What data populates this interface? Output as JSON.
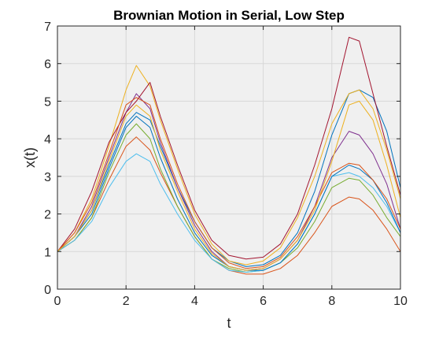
{
  "chart_data": {
    "type": "line",
    "title": "Brownian Motion in Serial, Low Step",
    "xlabel": "t",
    "ylabel": "x(t)",
    "xlim": [
      0,
      10
    ],
    "ylim": [
      0,
      7
    ],
    "xticks": [
      "0",
      "2",
      "4",
      "6",
      "8",
      "10"
    ],
    "yticks": [
      "0",
      "1",
      "2",
      "3",
      "4",
      "5",
      "6",
      "7"
    ],
    "grid": true,
    "legend": "none",
    "background_color": "#f0f0f0",
    "x": [
      0,
      0.5,
      1,
      1.5,
      2,
      2.3,
      2.7,
      3,
      3.5,
      4,
      4.5,
      5,
      5.5,
      6,
      6.5,
      7,
      7.5,
      8,
      8.5,
      8.8,
      9.2,
      9.6,
      10
    ],
    "series": [
      {
        "color": "#0072BD",
        "values": [
          1.0,
          1.4,
          2.1,
          3.3,
          4.4,
          4.7,
          4.5,
          3.8,
          2.7,
          1.8,
          1.1,
          0.75,
          0.6,
          0.65,
          0.9,
          1.5,
          2.6,
          4.1,
          5.2,
          5.3,
          5.1,
          4.2,
          2.7
        ]
      },
      {
        "color": "#D95319",
        "values": [
          1.0,
          1.3,
          1.9,
          2.9,
          3.8,
          4.05,
          3.7,
          3.1,
          2.2,
          1.4,
          0.8,
          0.5,
          0.4,
          0.4,
          0.55,
          0.9,
          1.5,
          2.2,
          2.45,
          2.4,
          2.1,
          1.6,
          1.0
        ]
      },
      {
        "color": "#EDB120",
        "values": [
          1.0,
          1.5,
          2.4,
          3.8,
          5.3,
          5.95,
          5.4,
          4.5,
          3.2,
          2.0,
          1.2,
          0.75,
          0.65,
          0.75,
          1.1,
          1.9,
          3.0,
          4.4,
          5.2,
          5.3,
          4.8,
          3.7,
          2.4
        ]
      },
      {
        "color": "#7E2F8E",
        "values": [
          1.0,
          1.4,
          2.2,
          3.5,
          4.7,
          5.2,
          4.8,
          3.9,
          2.7,
          1.7,
          1.0,
          0.6,
          0.5,
          0.55,
          0.8,
          1.3,
          2.2,
          3.5,
          4.2,
          4.1,
          3.6,
          2.8,
          1.6
        ]
      },
      {
        "color": "#77AC30",
        "values": [
          1.0,
          1.3,
          1.9,
          3.1,
          4.1,
          4.4,
          4.0,
          3.2,
          2.2,
          1.4,
          0.8,
          0.55,
          0.45,
          0.5,
          0.7,
          1.1,
          1.8,
          2.7,
          2.95,
          2.9,
          2.5,
          1.9,
          1.4
        ]
      },
      {
        "color": "#4DBEEE",
        "values": [
          1.0,
          1.3,
          1.8,
          2.7,
          3.4,
          3.6,
          3.4,
          2.8,
          2.0,
          1.3,
          0.8,
          0.5,
          0.45,
          0.5,
          0.7,
          1.2,
          2.0,
          3.0,
          3.1,
          3.0,
          2.7,
          2.2,
          1.5
        ]
      },
      {
        "color": "#A2142F",
        "values": [
          1.0,
          1.6,
          2.6,
          3.9,
          4.7,
          5.0,
          5.5,
          4.6,
          3.3,
          2.1,
          1.3,
          0.9,
          0.8,
          0.85,
          1.2,
          2.0,
          3.3,
          4.8,
          6.7,
          6.6,
          5.2,
          3.8,
          2.5
        ]
      },
      {
        "color": "#0072BD",
        "values": [
          1.0,
          1.4,
          2.0,
          3.2,
          4.3,
          4.6,
          4.3,
          3.5,
          2.4,
          1.5,
          0.9,
          0.6,
          0.5,
          0.5,
          0.7,
          1.2,
          2.0,
          3.0,
          3.3,
          3.2,
          2.9,
          2.3,
          1.5
        ]
      },
      {
        "color": "#D95319",
        "values": [
          1.0,
          1.5,
          2.3,
          3.6,
          4.9,
          5.1,
          4.9,
          4.0,
          2.8,
          1.8,
          1.1,
          0.7,
          0.55,
          0.6,
          0.85,
          1.4,
          2.2,
          3.1,
          3.35,
          3.3,
          2.9,
          2.4,
          1.6
        ]
      },
      {
        "color": "#EDB120",
        "values": [
          1.0,
          1.4,
          2.1,
          3.4,
          4.6,
          4.9,
          4.6,
          3.7,
          2.6,
          1.6,
          0.95,
          0.6,
          0.5,
          0.55,
          0.8,
          1.3,
          2.1,
          3.4,
          4.9,
          5.0,
          4.5,
          3.3,
          1.9
        ]
      }
    ]
  }
}
